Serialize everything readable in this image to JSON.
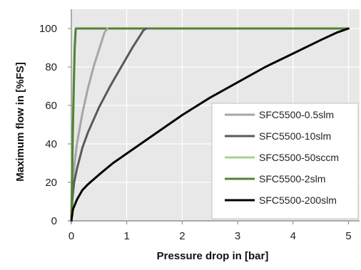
{
  "chart_data": {
    "type": "line",
    "title": "",
    "xlabel": "Pressure drop in [bar]",
    "ylabel": "Maximum flow in  [%FS]",
    "xlim": [
      0,
      5.2
    ],
    "ylim": [
      0,
      110
    ],
    "xticks": [
      "0",
      "1",
      "2",
      "3",
      "4",
      "5"
    ],
    "yticks": [
      "0",
      "20",
      "40",
      "60",
      "80",
      "100"
    ],
    "grid": true,
    "background": "#e8e8e8",
    "legend": "bottom-right",
    "series": [
      {
        "name": "SFC5500-0.5slm",
        "color": "#a6a6a6",
        "x": [
          0,
          0.02,
          0.05,
          0.1,
          0.2,
          0.3,
          0.4,
          0.5,
          0.6,
          0.65
        ],
        "y": [
          0,
          18,
          28,
          40,
          56,
          69,
          80,
          89,
          98,
          100
        ]
      },
      {
        "name": "SFC5500-10slm",
        "color": "#595959",
        "x": [
          0,
          0.02,
          0.05,
          0.1,
          0.2,
          0.3,
          0.5,
          0.7,
          0.9,
          1.1,
          1.3,
          1.35
        ],
        "y": [
          0,
          12,
          20,
          27,
          38,
          46,
          59,
          70,
          80,
          90,
          99,
          100
        ]
      },
      {
        "name": "SFC5500-50sccm",
        "color": "#a9d18e",
        "x": [
          0,
          0.02,
          0.04,
          0.06,
          0.08
        ],
        "y": [
          0,
          40,
          70,
          90,
          100
        ]
      },
      {
        "name": "SFC5500-2slm",
        "color": "#548235",
        "x": [
          0,
          0.03,
          0.06,
          0.08
        ],
        "y": [
          0,
          50,
          90,
          100
        ]
      },
      {
        "name": "SFC5500-200slm",
        "color": "#000000",
        "x": [
          0,
          0.03,
          0.1,
          0.2,
          0.3,
          0.5,
          0.75,
          1,
          1.5,
          2,
          2.5,
          3,
          3.5,
          4,
          4.5,
          4.8,
          5
        ],
        "y": [
          0,
          6,
          11,
          16,
          19,
          24,
          30,
          35,
          45,
          55,
          64,
          72,
          80,
          87,
          94,
          98,
          100
        ]
      }
    ],
    "horizontal_line": {
      "y": 100,
      "x_end": 5,
      "color": "#548235"
    }
  }
}
